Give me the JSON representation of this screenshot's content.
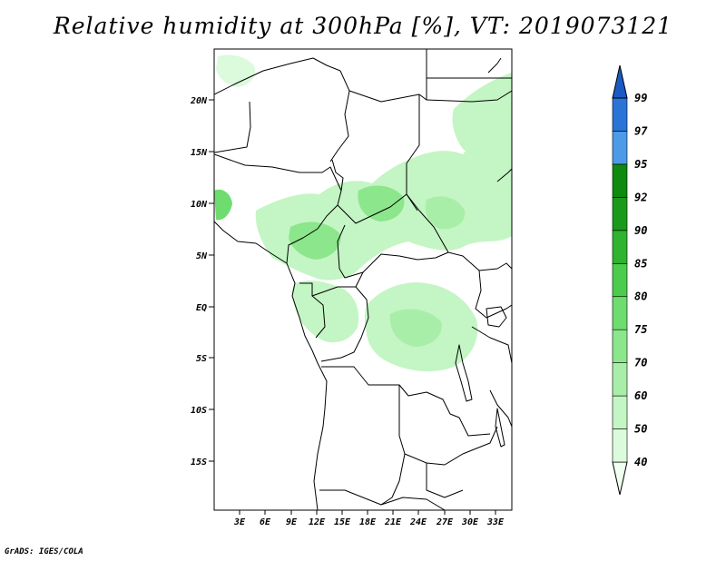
{
  "title": "Relative humidity at 300hPa [%], VT: 2019073121",
  "credit": "GrADS: IGES/COLA",
  "map": {
    "lon_range": [
      0,
      35
    ],
    "lat_range": [
      -20,
      25
    ],
    "x_ticks": [
      "3E",
      "6E",
      "9E",
      "12E",
      "15E",
      "18E",
      "21E",
      "24E",
      "27E",
      "30E",
      "33E"
    ],
    "y_ticks": [
      "20N",
      "15N",
      "10N",
      "5N",
      "EQ",
      "5S",
      "10S",
      "15S"
    ]
  },
  "colorbar": {
    "levels": [
      "40",
      "50",
      "60",
      "70",
      "75",
      "80",
      "85",
      "90",
      "92",
      "95",
      "97",
      "99"
    ],
    "colors": [
      "#f0fff0",
      "#dcfadc",
      "#c4f5c4",
      "#a8eea8",
      "#8ce68c",
      "#6edc6e",
      "#4ccc4c",
      "#2eb42e",
      "#1a9a1a",
      "#0e8a0e",
      "#4c9ae8",
      "#2a74d8",
      "#1a5ac4"
    ]
  }
}
